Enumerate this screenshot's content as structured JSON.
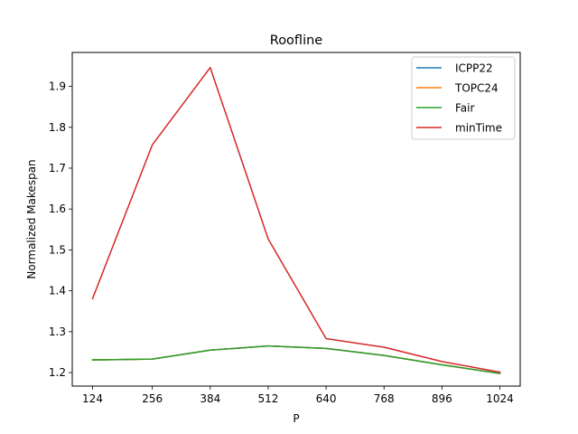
{
  "chart_data": {
    "type": "line",
    "title": "Roofline",
    "xlabel": "P",
    "ylabel": "Normalized Makespan",
    "x": [
      124,
      256,
      384,
      512,
      640,
      768,
      896,
      1024
    ],
    "x_tick_labels": [
      "124",
      "256",
      "384",
      "512",
      "640",
      "768",
      "896",
      "1024"
    ],
    "y_ticks": [
      1.2,
      1.3,
      1.4,
      1.5,
      1.6,
      1.7,
      1.8,
      1.9
    ],
    "y_tick_labels": [
      "1.2",
      "1.3",
      "1.4",
      "1.5",
      "1.6",
      "1.7",
      "1.8",
      "1.9"
    ],
    "ylim": [
      1.167,
      1.983
    ],
    "grid": false,
    "legend_position": "top-right",
    "series": [
      {
        "name": "ICPP22",
        "color": "#1f77b4",
        "values": [
          1.231,
          1.233,
          1.255,
          1.265,
          1.259,
          1.242,
          1.219,
          1.198
        ]
      },
      {
        "name": "TOPC24",
        "color": "#ff7f0e",
        "values": [
          1.231,
          1.233,
          1.255,
          1.265,
          1.259,
          1.242,
          1.219,
          1.198
        ]
      },
      {
        "name": "Fair",
        "color": "#2ca02c",
        "values": [
          1.231,
          1.233,
          1.255,
          1.265,
          1.259,
          1.242,
          1.219,
          1.198
        ]
      },
      {
        "name": "minTime",
        "color": "#d62728",
        "values": [
          1.381,
          1.757,
          1.946,
          1.527,
          1.283,
          1.262,
          1.227,
          1.201
        ]
      }
    ]
  }
}
